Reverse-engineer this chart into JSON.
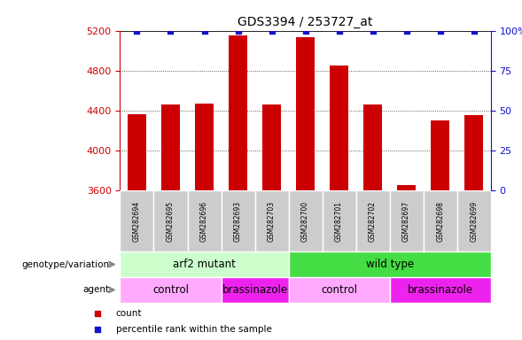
{
  "title": "GDS3394 / 253727_at",
  "samples": [
    "GSM282694",
    "GSM282695",
    "GSM282696",
    "GSM282693",
    "GSM282703",
    "GSM282700",
    "GSM282701",
    "GSM282702",
    "GSM282697",
    "GSM282698",
    "GSM282699"
  ],
  "counts": [
    4360,
    4460,
    4470,
    5155,
    4460,
    5130,
    4850,
    4460,
    3655,
    4300,
    4355
  ],
  "percentile_ranks": [
    100,
    100,
    100,
    100,
    100,
    100,
    100,
    100,
    100,
    100,
    100
  ],
  "ylim_left": [
    3600,
    5200
  ],
  "ylim_right": [
    0,
    100
  ],
  "yticks_left": [
    3600,
    4000,
    4400,
    4800,
    5200
  ],
  "yticks_right": [
    0,
    25,
    50,
    75,
    100
  ],
  "bar_color": "#cc0000",
  "dot_color": "#1111cc",
  "genotype_groups": [
    {
      "label": "arf2 mutant",
      "start": 0,
      "end": 5,
      "color": "#ccffcc"
    },
    {
      "label": "wild type",
      "start": 5,
      "end": 11,
      "color": "#44dd44"
    }
  ],
  "agent_groups": [
    {
      "label": "control",
      "start": 0,
      "end": 3,
      "color": "#ffaaff"
    },
    {
      "label": "brassinazole",
      "start": 3,
      "end": 5,
      "color": "#ee22ee"
    },
    {
      "label": "control",
      "start": 5,
      "end": 8,
      "color": "#ffaaff"
    },
    {
      "label": "brassinazole",
      "start": 8,
      "end": 11,
      "color": "#ee22ee"
    }
  ],
  "legend_items": [
    {
      "label": "count",
      "color": "#cc0000"
    },
    {
      "label": "percentile rank within the sample",
      "color": "#1111cc"
    }
  ],
  "row_labels": [
    "genotype/variation",
    "agent"
  ],
  "left_axis_color": "#cc0000",
  "right_axis_color": "#1111cc",
  "sample_box_color": "#cccccc",
  "grid_linestyle": "dotted",
  "grid_color": "#333333"
}
